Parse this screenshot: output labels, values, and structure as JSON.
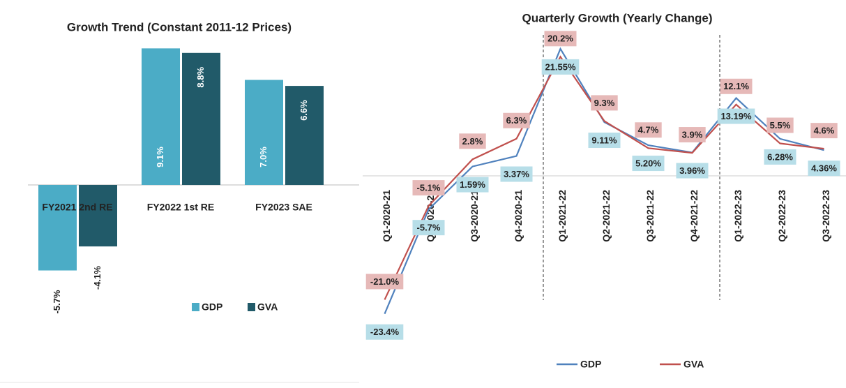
{
  "chart_data": [
    {
      "type": "bar",
      "title": "Growth Trend (Constant 2011-12 Prices)",
      "categories": [
        "FY2021 2nd RE",
        "FY2022 1st RE",
        "FY2023 SAE"
      ],
      "series": [
        {
          "name": "GDP",
          "color": "#4bacc6",
          "values": [
            -5.7,
            9.1,
            7.0
          ],
          "value_labels": [
            "-5.7%",
            "9.1%",
            "7.0%"
          ]
        },
        {
          "name": "GVA",
          "color": "#215a69",
          "values": [
            -4.1,
            8.8,
            6.6
          ],
          "value_labels": [
            "-4.1%",
            "8.8%",
            "6.6%"
          ]
        }
      ]
    },
    {
      "type": "line",
      "title": "Quarterly Growth (Yearly Change)",
      "categories": [
        "Q1-2020-21",
        "Q2-2020-21",
        "Q3-2020-21",
        "Q4-2020-21",
        "Q1-2021-22",
        "Q2-2021-22",
        "Q3-2021-22",
        "Q4-2021-22",
        "Q1-2022-23",
        "Q2-2022-23",
        "Q3-2022-23"
      ],
      "series": [
        {
          "name": "GDP",
          "color": "#4f81bd",
          "values": [
            -23.4,
            -5.7,
            1.59,
            3.37,
            21.55,
            9.11,
            5.2,
            3.96,
            13.19,
            6.28,
            4.36
          ],
          "value_labels": [
            "-23.4%",
            "-5.7%",
            "1.59%",
            "3.37%",
            "21.55%",
            "9.11%",
            "5.20%",
            "3.96%",
            "13.19%",
            "6.28%",
            "4.36%"
          ]
        },
        {
          "name": "GVA",
          "color": "#c0504d",
          "values": [
            -21.0,
            -5.1,
            2.8,
            6.3,
            20.2,
            9.3,
            4.7,
            3.9,
            12.1,
            5.5,
            4.6
          ],
          "value_labels": [
            "-21.0%",
            "-5.1%",
            "2.8%",
            "6.3%",
            "20.2%",
            "9.3%",
            "4.7%",
            "3.9%",
            "12.1%",
            "5.5%",
            "4.6%"
          ]
        }
      ]
    }
  ]
}
